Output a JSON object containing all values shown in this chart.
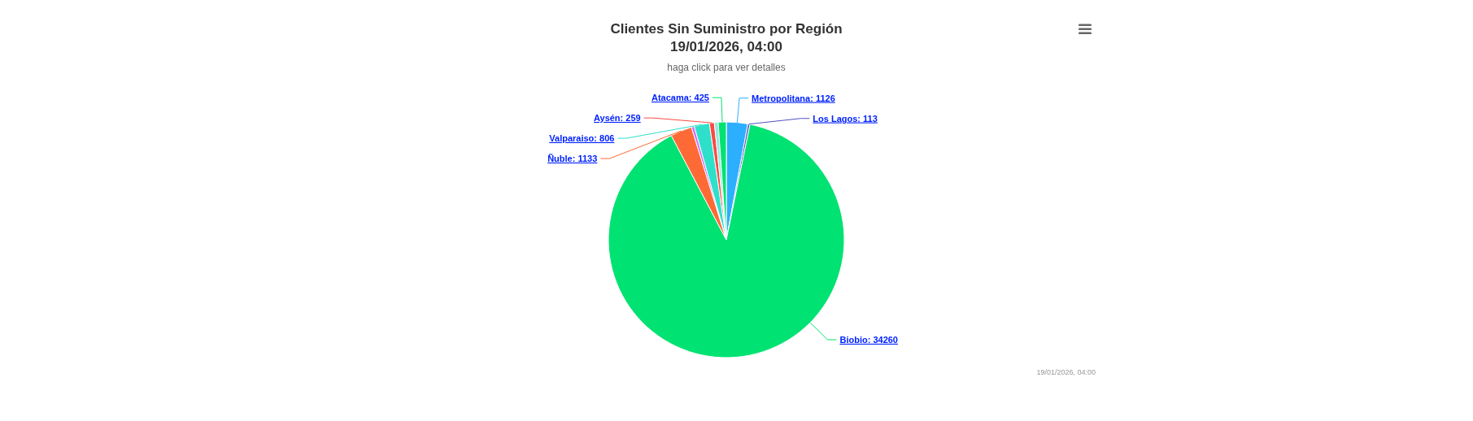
{
  "chart_data": {
    "type": "pie",
    "title": "Clientes Sin Suministro por Región\n19/01/2026, 04:00",
    "subtitle": "haga click para ver detalles",
    "categories": [
      "Metropolitana",
      "Los Lagos",
      "Biobio",
      "Ñuble",
      null,
      "Valparaiso",
      "Aysén",
      null,
      "Atacama"
    ],
    "values": [
      1126,
      113,
      34260,
      1133,
      150,
      806,
      259,
      200,
      425
    ],
    "colors": [
      "#2caffe",
      "#544fc5",
      "#00e272",
      "#fe6a35",
      "#d568fb",
      "#2ee0ca",
      "#fa4b42",
      "#91e8e1",
      "#00e272"
    ],
    "value_labels": [
      "1126",
      "113",
      "34260",
      "1133",
      null,
      "806",
      "259",
      null,
      "425"
    ],
    "annotations": [
      "19/01/2026, 04:00"
    ]
  }
}
